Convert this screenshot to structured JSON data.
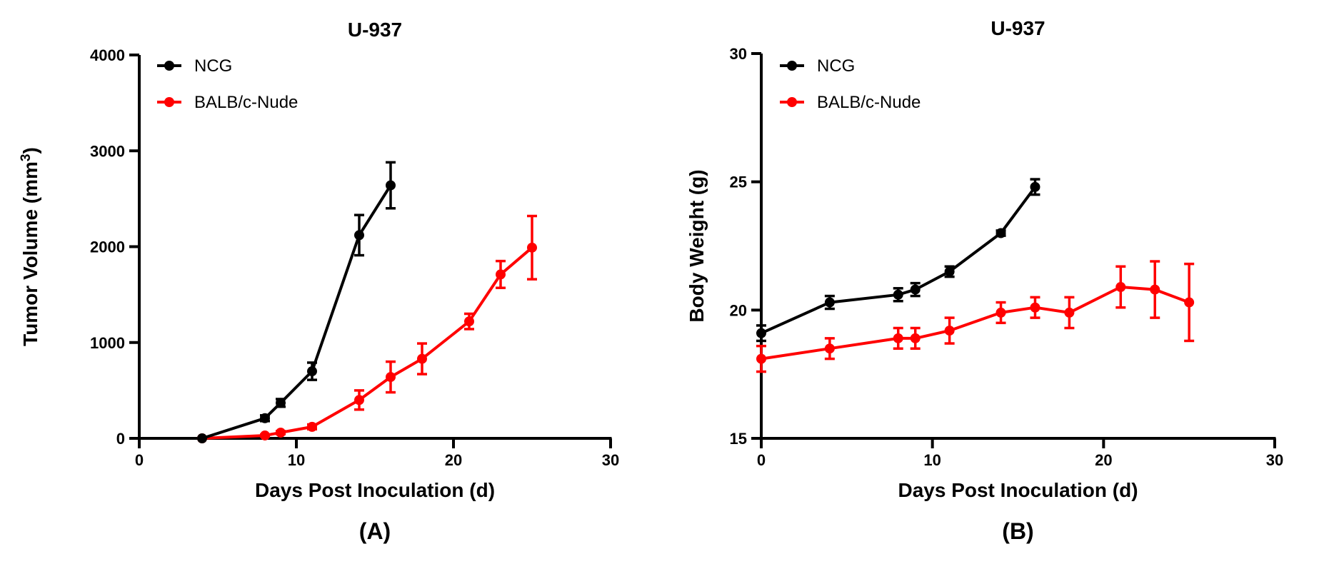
{
  "chart_data": [
    {
      "id": "A",
      "type": "line",
      "title": "U-937",
      "xlabel": "Days Post Inoculation (d)",
      "ylabel": "Tumor Volume (mm",
      "ylabel_sup": "3",
      "ylabel_close": ")",
      "xlim": [
        0,
        30
      ],
      "ylim": [
        0,
        4000
      ],
      "xticks": [
        0,
        10,
        20,
        30
      ],
      "yticks": [
        0,
        1000,
        2000,
        3000,
        4000
      ],
      "xtick_labels": [
        "0",
        "10",
        "20",
        "30"
      ],
      "ytick_labels": [
        "0",
        "1000",
        "2000",
        "3000",
        "4000"
      ],
      "panel_label": "(A)",
      "legend_position": "top-left",
      "series": [
        {
          "name": "NCG",
          "color": "#000000",
          "x": [
            4,
            8,
            9,
            11,
            14,
            16
          ],
          "y": [
            0,
            210,
            370,
            700,
            2120,
            2640
          ],
          "err": [
            0,
            30,
            40,
            90,
            210,
            240
          ]
        },
        {
          "name": "BALB/c-Nude",
          "color": "#ff0000",
          "x": [
            4,
            8,
            9,
            11,
            14,
            16,
            18,
            21,
            23,
            25
          ],
          "y": [
            0,
            30,
            60,
            120,
            400,
            640,
            830,
            1220,
            1710,
            1990
          ],
          "err": [
            0,
            10,
            15,
            25,
            100,
            160,
            160,
            80,
            140,
            330
          ]
        }
      ]
    },
    {
      "id": "B",
      "type": "line",
      "title": "U-937",
      "xlabel": "Days Post Inoculation (d)",
      "ylabel": "Body Weight (g)",
      "xlim": [
        0,
        30
      ],
      "ylim": [
        15,
        30
      ],
      "xticks": [
        0,
        10,
        20,
        30
      ],
      "yticks": [
        15,
        20,
        25,
        30
      ],
      "xtick_labels": [
        "0",
        "10",
        "20",
        "30"
      ],
      "ytick_labels": [
        "15",
        "20",
        "25",
        "30"
      ],
      "panel_label": "(B)",
      "legend_position": "top-left",
      "series": [
        {
          "name": "NCG",
          "color": "#000000",
          "x": [
            0,
            4,
            8,
            9,
            11,
            14,
            16
          ],
          "y": [
            19.1,
            20.3,
            20.6,
            20.8,
            21.5,
            23.0,
            24.8
          ],
          "err": [
            0.3,
            0.25,
            0.25,
            0.25,
            0.2,
            0.1,
            0.3
          ]
        },
        {
          "name": "BALB/c-Nude",
          "color": "#ff0000",
          "x": [
            0,
            4,
            8,
            9,
            11,
            14,
            16,
            18,
            21,
            23,
            25
          ],
          "y": [
            18.1,
            18.5,
            18.9,
            18.9,
            19.2,
            19.9,
            20.1,
            19.9,
            20.9,
            20.8,
            20.3
          ],
          "err": [
            0.5,
            0.4,
            0.4,
            0.4,
            0.5,
            0.4,
            0.4,
            0.6,
            0.8,
            1.1,
            1.5
          ]
        }
      ]
    }
  ]
}
